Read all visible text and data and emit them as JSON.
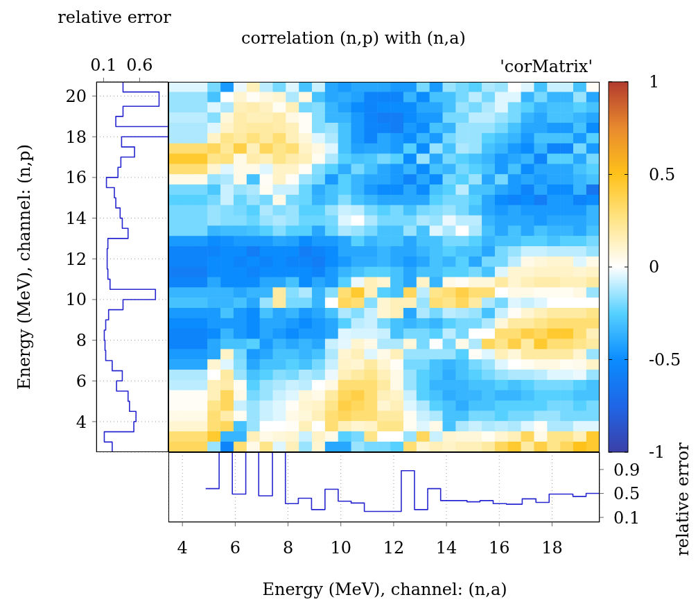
{
  "chart_data": [
    {
      "type": "heatmap",
      "title": "correlation (n,p) with (n,a)",
      "annotations": [
        "'corMatrix'"
      ],
      "categories": [
        null,
        null,
        null,
        null,
        null,
        null,
        null,
        null,
        null,
        null,
        null,
        null,
        null,
        null,
        null,
        null,
        null,
        null,
        null,
        null,
        null,
        null,
        null,
        null,
        null,
        null,
        null,
        null,
        null,
        null,
        null,
        null,
        null
      ],
      "y_categories": [
        null,
        null,
        null,
        null,
        null,
        null,
        null,
        null,
        null,
        null,
        null,
        null,
        null,
        null,
        null,
        null,
        null,
        null,
        null,
        null,
        null,
        null,
        null,
        null,
        null,
        null,
        null,
        null,
        null,
        null,
        null,
        null,
        null,
        null,
        null,
        null
      ],
      "clim": [
        -1,
        1
      ],
      "cticks": [
        -1,
        -0.5,
        0,
        0.5,
        1
      ],
      "cells": [
        [
          -0.05,
          -0.05,
          -0.05,
          -0.2,
          -0.45,
          -0.03,
          0.15,
          -0.1,
          -0.2,
          -0.05,
          -0.3,
          -0.08,
          -0.4,
          -0.45,
          -0.4,
          -0.4,
          -0.4,
          -0.45,
          -0.45,
          -0.2,
          -0.45,
          -0.15,
          -0.2,
          -0.25,
          -0.12,
          -0.15,
          0,
          -0.05,
          -0.3,
          -0.08,
          -0.08,
          -0.3,
          0.02
        ],
        [
          -0.15,
          -0.15,
          -0.15,
          -0.3,
          0,
          0.1,
          0.02,
          0.07,
          0.1,
          -0.12,
          0.06,
          -0.3,
          -0.4,
          -0.38,
          -0.42,
          -0.55,
          -0.55,
          -0.55,
          -0.35,
          -0.5,
          -0.3,
          -0.3,
          -0.2,
          -0.1,
          -0.2,
          -0.05,
          -0.05,
          -0.35,
          -0.2,
          -0.35,
          -0.35,
          -0.15,
          -0.4
        ],
        [
          -0.15,
          -0.15,
          -0.15,
          -0.05,
          -0.12,
          0.15,
          0.17,
          0.13,
          0.03,
          0.15,
          -0.2,
          -0.18,
          -0.35,
          -0.42,
          -0.5,
          -0.55,
          -0.5,
          -0.5,
          -0.5,
          -0.4,
          -0.4,
          -0.3,
          -0.15,
          -0.2,
          -0.12,
          -0.05,
          -0.2,
          -0.25,
          -0.35,
          -0.3,
          -0.3,
          -0.25,
          -0.3
        ],
        [
          -0.1,
          -0.1,
          -0.1,
          -0.18,
          0.08,
          0.18,
          0.15,
          0.15,
          0.18,
          0.06,
          0.02,
          -0.18,
          -0.35,
          -0.35,
          -0.45,
          -0.55,
          -0.6,
          -0.6,
          -0.5,
          -0.45,
          -0.45,
          -0.2,
          -0.2,
          -0.1,
          -0.1,
          -0.15,
          -0.2,
          -0.35,
          -0.4,
          -0.3,
          -0.3,
          -0.35,
          -0.4
        ],
        [
          -0.12,
          -0.12,
          -0.12,
          -0.05,
          0.12,
          0.18,
          0.2,
          0.2,
          0.18,
          0.15,
          0.02,
          -0.18,
          -0.15,
          -0.3,
          -0.45,
          -0.55,
          -0.55,
          -0.6,
          -0.45,
          -0.5,
          -0.3,
          -0.35,
          -0.15,
          -0.15,
          -0.15,
          -0.2,
          -0.3,
          -0.4,
          -0.4,
          -0.45,
          -0.45,
          -0.3,
          -0.5
        ],
        [
          -0.12,
          -0.12,
          -0.12,
          0.12,
          0.25,
          0.2,
          0.28,
          0.2,
          0.3,
          0.15,
          0.08,
          -0.05,
          -0.12,
          -0.3,
          -0.45,
          -0.55,
          -0.4,
          -0.45,
          -0.5,
          -0.35,
          -0.45,
          -0.2,
          -0.15,
          -0.15,
          -0.25,
          -0.3,
          -0.35,
          -0.45,
          -0.3,
          -0.3,
          -0.3,
          -0.45,
          -0.25
        ],
        [
          0.3,
          0.3,
          0.3,
          0.35,
          0.22,
          0.4,
          0.15,
          0.35,
          0.25,
          0.3,
          0.12,
          0.06,
          -0.05,
          -0.3,
          -0.42,
          -0.4,
          -0.4,
          -0.45,
          -0.25,
          -0.5,
          -0.15,
          -0.3,
          -0.12,
          -0.15,
          -0.3,
          -0.35,
          -0.45,
          -0.5,
          -0.35,
          -0.55,
          -0.55,
          -0.2,
          -0.45
        ],
        [
          0.45,
          0.45,
          0.45,
          0.25,
          0.28,
          0.05,
          0.18,
          0.15,
          0.25,
          0.18,
          0.15,
          0.03,
          -0.12,
          -0.25,
          -0.3,
          -0.28,
          -0.2,
          -0.25,
          -0.5,
          -0.15,
          -0.4,
          -0.2,
          -0.25,
          -0.3,
          -0.35,
          -0.45,
          -0.4,
          -0.35,
          -0.55,
          -0.25,
          -0.25,
          -0.4,
          -0.2
        ],
        [
          0.3,
          0.3,
          0.3,
          0.1,
          -0.05,
          0.05,
          0.05,
          -0.05,
          0.12,
          0.12,
          0.02,
          -0.18,
          -0.25,
          -0.38,
          -0.2,
          -0.3,
          -0.4,
          -0.45,
          -0.35,
          -0.5,
          -0.3,
          -0.35,
          -0.2,
          -0.25,
          -0.3,
          -0.45,
          -0.3,
          -0.5,
          -0.4,
          -0.4,
          -0.4,
          -0.3,
          -0.25
        ],
        [
          0.05,
          0.05,
          0.05,
          -0.15,
          -0.12,
          0.05,
          -0.3,
          0.02,
          0.12,
          0.02,
          -0.15,
          -0.2,
          -0.45,
          -0.25,
          -0.35,
          -0.4,
          -0.4,
          -0.45,
          -0.55,
          -0.4,
          -0.5,
          -0.2,
          -0.25,
          -0.15,
          -0.4,
          -0.2,
          -0.45,
          -0.4,
          -0.45,
          -0.4,
          -0.4,
          -0.35,
          -0.3
        ],
        [
          -0.2,
          -0.2,
          -0.2,
          -0.28,
          -0.08,
          -0.15,
          -0.12,
          0.03,
          -0.08,
          -0.08,
          -0.22,
          -0.38,
          -0.3,
          -0.25,
          -0.35,
          -0.45,
          -0.5,
          -0.5,
          -0.4,
          -0.5,
          -0.3,
          -0.25,
          -0.1,
          -0.3,
          -0.3,
          -0.4,
          -0.45,
          -0.55,
          -0.4,
          -0.5,
          -0.5,
          -0.35,
          -0.65
        ],
        [
          -0.25,
          -0.25,
          -0.25,
          -0.2,
          -0.08,
          -0.22,
          -0.15,
          -0.2,
          0.05,
          -0.2,
          -0.22,
          -0.35,
          -0.3,
          -0.18,
          -0.3,
          -0.35,
          -0.4,
          -0.4,
          -0.4,
          -0.4,
          -0.25,
          -0.2,
          -0.2,
          -0.25,
          -0.4,
          -0.5,
          -0.55,
          -0.5,
          -0.6,
          -0.45,
          -0.45,
          -0.55,
          -0.5
        ],
        [
          -0.2,
          -0.2,
          -0.2,
          -0.15,
          -0.18,
          -0.2,
          -0.25,
          -0.12,
          -0.18,
          -0.15,
          -0.25,
          -0.25,
          -0.15,
          -0.08,
          -0.1,
          -0.2,
          -0.25,
          -0.2,
          -0.3,
          -0.2,
          -0.18,
          -0.15,
          -0.2,
          -0.3,
          -0.4,
          -0.45,
          -0.4,
          -0.45,
          -0.45,
          -0.45,
          -0.45,
          -0.45,
          -0.35
        ],
        [
          -0.2,
          -0.2,
          -0.2,
          -0.15,
          -0.18,
          -0.18,
          -0.22,
          -0.15,
          -0.12,
          -0.15,
          -0.22,
          -0.22,
          -0.2,
          -0.05,
          0,
          -0.12,
          -0.2,
          -0.2,
          -0.2,
          -0.12,
          -0.15,
          -0.03,
          -0.1,
          -0.1,
          -0.35,
          -0.4,
          -0.4,
          -0.4,
          -0.45,
          -0.4,
          -0.4,
          -0.4,
          -0.35
        ],
        [
          -0.2,
          -0.2,
          -0.2,
          -0.35,
          -0.32,
          -0.32,
          -0.3,
          -0.25,
          -0.18,
          -0.25,
          -0.25,
          -0.4,
          -0.22,
          -0.12,
          -0.15,
          -0.2,
          -0.3,
          -0.3,
          -0.15,
          -0.3,
          -0.05,
          -0.12,
          0,
          -0.12,
          -0.3,
          -0.4,
          -0.3,
          -0.4,
          -0.3,
          -0.35,
          -0.35,
          -0.4,
          -0.3
        ],
        [
          -0.45,
          -0.45,
          -0.45,
          -0.5,
          -0.48,
          -0.45,
          -0.45,
          -0.45,
          -0.4,
          -0.42,
          -0.5,
          -0.45,
          -0.45,
          -0.4,
          -0.25,
          -0.35,
          -0.3,
          -0.3,
          -0.4,
          -0.3,
          -0.3,
          -0.2,
          -0.2,
          -0.25,
          -0.35,
          -0.3,
          -0.3,
          -0.25,
          -0.25,
          -0.3,
          -0.25,
          -0.25,
          -0.2
        ],
        [
          -0.55,
          -0.55,
          -0.55,
          -0.55,
          -0.5,
          -0.5,
          -0.6,
          -0.5,
          -0.5,
          -0.5,
          -0.6,
          -0.55,
          -0.5,
          -0.4,
          -0.4,
          -0.4,
          -0.35,
          -0.4,
          -0.4,
          -0.35,
          -0.3,
          -0.25,
          -0.3,
          -0.3,
          -0.4,
          -0.2,
          -0.15,
          -0.08,
          -0.08,
          -0.1,
          -0.1,
          -0.1,
          -0.15
        ],
        [
          -0.55,
          -0.55,
          -0.55,
          -0.5,
          -0.5,
          -0.55,
          -0.5,
          -0.55,
          -0.5,
          -0.55,
          -0.55,
          -0.6,
          -0.5,
          -0.45,
          -0.38,
          -0.38,
          -0.35,
          -0.4,
          -0.45,
          -0.4,
          -0.3,
          -0.35,
          -0.25,
          -0.4,
          -0.2,
          -0.2,
          -0.1,
          0.05,
          0.08,
          0.1,
          0.1,
          -0.05,
          0.05
        ],
        [
          -0.6,
          -0.6,
          -0.6,
          -0.5,
          -0.5,
          -0.5,
          -0.55,
          -0.5,
          -0.5,
          -0.5,
          -0.5,
          -0.55,
          -0.45,
          -0.35,
          -0.3,
          -0.25,
          -0.25,
          -0.3,
          -0.4,
          -0.3,
          -0.3,
          -0.25,
          -0.25,
          -0.2,
          -0.3,
          -0.05,
          0.1,
          0.1,
          0.12,
          0.12,
          0.12,
          0.1,
          0.12
        ],
        [
          -0.55,
          -0.55,
          -0.55,
          -0.4,
          -0.5,
          -0.5,
          -0.5,
          -0.4,
          -0.4,
          -0.3,
          -0.5,
          -0.4,
          -0.45,
          -0.25,
          -0.03,
          0.15,
          0.1,
          -0.3,
          -0.4,
          0.12,
          -0.35,
          0.05,
          0.02,
          0.08,
          0.08,
          0.2,
          0.1,
          0.15,
          0.18,
          0.18,
          0.15,
          0.15,
          0.2
        ],
        [
          -0.35,
          -0.35,
          -0.35,
          -0.35,
          -0.35,
          -0.4,
          -0.35,
          -0.35,
          0.2,
          -0.18,
          -0.12,
          -0.35,
          -0.18,
          0.3,
          0.45,
          0.15,
          -0.25,
          -0.3,
          0.35,
          -0.1,
          0.25,
          0.3,
          0.4,
          0.3,
          0.3,
          0,
          0.05,
          0.05,
          0.03,
          0.03,
          0.03,
          0.06,
          -0.15
        ],
        [
          -0.3,
          -0.3,
          -0.3,
          -0.35,
          -0.35,
          -0.3,
          -0.4,
          -0.15,
          0.2,
          -0.2,
          -0.2,
          -0.35,
          0,
          0.35,
          0.3,
          -0.18,
          0.1,
          0.15,
          0.15,
          -0.15,
          0.3,
          0.25,
          0.35,
          0.2,
          -0.12,
          -0.2,
          -0.05,
          -0.08,
          -0.05,
          0,
          0,
          0,
          0
        ],
        [
          -0.45,
          -0.45,
          -0.45,
          -0.45,
          -0.3,
          -0.45,
          -0.5,
          -0.3,
          -0.4,
          -0.35,
          -0.45,
          -0.4,
          -0.3,
          -0.12,
          -0.18,
          -0.08,
          0.1,
          0.15,
          -0.4,
          -0.12,
          -0.2,
          -0.1,
          -0.12,
          -0.15,
          -0.3,
          -0.08,
          0.02,
          0.1,
          0.15,
          0.2,
          0.2,
          0.2,
          0.25
        ],
        [
          -0.5,
          -0.5,
          -0.5,
          -0.45,
          -0.45,
          -0.45,
          -0.5,
          -0.4,
          -0.4,
          -0.45,
          -0.5,
          -0.45,
          -0.4,
          -0.25,
          -0.1,
          -0.08,
          -0.2,
          -0.3,
          -0.35,
          -0.3,
          -0.35,
          -0.25,
          -0.2,
          -0.2,
          -0.12,
          0.08,
          0.2,
          0.2,
          0.25,
          0.3,
          0.3,
          0.3,
          0.3
        ],
        [
          -0.55,
          -0.55,
          -0.55,
          -0.5,
          -0.35,
          -0.45,
          -0.5,
          -0.4,
          -0.45,
          -0.5,
          -0.45,
          -0.45,
          -0.4,
          -0.05,
          -0.06,
          -0.06,
          -0.08,
          -0.3,
          -0.2,
          -0.2,
          -0.25,
          -0.1,
          -0.2,
          0,
          0,
          0.3,
          0.3,
          0.4,
          0.35,
          0.45,
          0.45,
          0.3,
          0.15
        ],
        [
          -0.55,
          -0.55,
          -0.55,
          -0.4,
          -0.3,
          -0.3,
          -0.25,
          -0.45,
          -0.35,
          -0.4,
          -0.35,
          -0.4,
          -0.08,
          -0.04,
          0.1,
          0.05,
          -0.12,
          -0.12,
          0.08,
          -0.2,
          0,
          -0.2,
          0.05,
          -0.12,
          0.35,
          0.25,
          0.4,
          0.2,
          0.45,
          0.3,
          0.3,
          0.25,
          0.2
        ],
        [
          -0.45,
          -0.45,
          -0.45,
          -0.4,
          0.12,
          -0.2,
          -0.45,
          -0.4,
          -0.3,
          -0.3,
          -0.35,
          -0.3,
          -0.12,
          0.1,
          0.15,
          -0.05,
          0.05,
          0.15,
          -0.15,
          -0.15,
          -0.15,
          -0.15,
          -0.25,
          0.02,
          -0.05,
          0.15,
          0.08,
          0.2,
          0.2,
          0.2,
          0.2,
          0.1,
          -0.15
        ],
        [
          -0.4,
          -0.4,
          -0.4,
          0.1,
          -0.05,
          -0.18,
          -0.4,
          -0.3,
          -0.3,
          -0.25,
          -0.3,
          -0.2,
          -0.08,
          0.12,
          0.1,
          0.2,
          0.1,
          0.02,
          -0.2,
          -0.2,
          -0.3,
          -0.35,
          -0.3,
          -0.2,
          -0.15,
          -0.05,
          0,
          0.03,
          0.06,
          0.06,
          0.03,
          0.04,
          0.12
        ],
        [
          -0.12,
          -0.12,
          -0.12,
          0,
          0.2,
          -0.15,
          -0.3,
          -0.25,
          -0.18,
          -0.2,
          -0.12,
          -0.15,
          -0.03,
          0.15,
          0.2,
          0.25,
          0.15,
          0.05,
          -0.15,
          -0.25,
          -0.3,
          -0.38,
          -0.3,
          -0.25,
          -0.2,
          -0.15,
          -0.12,
          -0.12,
          -0.1,
          -0.05,
          -0.05,
          -0.03,
          -0.15
        ],
        [
          -0.1,
          -0.1,
          -0.1,
          0.15,
          0.18,
          0.03,
          -0.25,
          -0.15,
          -0.12,
          -0.08,
          -0.1,
          0,
          0.06,
          0.3,
          0.3,
          0.3,
          0.2,
          0.05,
          -0.15,
          -0.25,
          -0.35,
          -0.35,
          -0.35,
          -0.3,
          -0.3,
          -0.25,
          -0.3,
          -0.25,
          -0.2,
          -0.2,
          -0.2,
          -0.25,
          -0.3
        ],
        [
          0.02,
          0.02,
          0.02,
          0.15,
          0.35,
          0.05,
          -0.2,
          -0.15,
          -0.08,
          -0.05,
          0.08,
          0.05,
          0.2,
          0.35,
          0.4,
          0.3,
          0.15,
          0.12,
          -0.08,
          -0.25,
          -0.3,
          -0.38,
          -0.35,
          -0.35,
          -0.3,
          -0.35,
          -0.35,
          -0.3,
          -0.25,
          -0.25,
          -0.25,
          -0.3,
          -0.3
        ],
        [
          0.02,
          0.02,
          0.02,
          0.25,
          0.35,
          -0.08,
          -0.15,
          -0.08,
          -0.05,
          0.02,
          0.1,
          0.12,
          0.25,
          0.4,
          0.35,
          0.3,
          0.1,
          0.15,
          -0.05,
          -0.12,
          -0.25,
          -0.3,
          -0.38,
          -0.3,
          -0.3,
          -0.25,
          -0.25,
          -0.25,
          -0.25,
          -0.2,
          -0.2,
          -0.25,
          -0.2
        ],
        [
          0.05,
          0.05,
          0.05,
          0.3,
          0.18,
          0.03,
          -0.15,
          -0.08,
          -0.05,
          0.05,
          0.08,
          0.15,
          0.3,
          0.35,
          0.3,
          0.3,
          0.2,
          0.2,
          0.03,
          -0.08,
          -0.12,
          -0.3,
          -0.3,
          -0.2,
          -0.2,
          -0.25,
          -0.2,
          -0.2,
          -0.15,
          -0.15,
          -0.2,
          -0.2,
          -0.2
        ],
        [
          0.1,
          0.1,
          0.1,
          0.3,
          0.35,
          -0.3,
          -0.15,
          0,
          0,
          0.02,
          0.15,
          0,
          0.3,
          0.15,
          0.1,
          0.12,
          0.25,
          0.25,
          0.03,
          -0.05,
          0.05,
          -0.3,
          -0.12,
          -0.08,
          -0.12,
          -0.1,
          -0.12,
          -0.05,
          0.02,
          -0.12,
          -0.12,
          -0.05,
          -0.05
        ],
        [
          0.3,
          0.3,
          0.3,
          0.45,
          -0.35,
          -0.35,
          0.15,
          0.05,
          0.08,
          0.1,
          -0.08,
          0.12,
          0.05,
          -0.25,
          -0.2,
          0.25,
          0,
          0,
          -0.15,
          0.35,
          -0.08,
          0.1,
          0.08,
          0.08,
          0.03,
          0.1,
          0.15,
          0.35,
          0.05,
          0.25,
          0.25,
          0.15,
          0.45
        ],
        [
          0.35,
          0.35,
          0.35,
          -0.15,
          -0.55,
          0.3,
          0.05,
          0.25,
          -0.05,
          0.15,
          -0.15,
          0.1,
          -0.4,
          -0.4,
          -0.15,
          -0.2,
          -0.2,
          -0.25,
          0.3,
          0.1,
          0.15,
          0.12,
          0.15,
          0.15,
          0.2,
          0.35,
          0.45,
          0.2,
          0.4,
          0.25,
          0.35,
          0.5,
          0.45
        ]
      ]
    },
    {
      "type": "step",
      "orientation": "horizontal",
      "ylabel": "Energy (MeV), channel: (n,p)",
      "x2label": "relative error",
      "x": [
        2.5,
        3,
        3.5,
        4,
        4.5,
        5,
        5.5,
        6,
        6.5,
        7,
        7.5,
        8,
        8.5,
        9,
        9.5,
        10,
        10.5,
        11,
        11.5,
        12,
        12.5,
        13,
        13.5,
        14,
        14.5,
        15,
        15.5,
        16,
        16.5,
        17,
        17.5,
        18,
        18.5,
        19,
        19.5,
        20.2,
        20.7
      ],
      "series": [
        {
          "color": "#2626d0",
          "axis": "x2",
          "values": [
            0.22,
            0.11,
            0.52,
            0.55,
            0.46,
            0.44,
            0.28,
            0.36,
            0.22,
            0.13,
            0.12,
            0.11,
            0.13,
            0.17,
            0.37,
            0.82,
            0.19,
            0.16,
            0.15,
            0.15,
            0.16,
            0.44,
            0.36,
            0.33,
            0.27,
            0.25,
            0.14,
            0.3,
            0.34,
            0.53,
            0.35,
            1,
            0.27,
            0.37,
            0.87,
            0.37,
            0.37
          ]
        }
      ],
      "x2lim": [
        0,
        1
      ],
      "x2ticks": [
        0.1,
        0.6
      ],
      "ylim": [
        2.5,
        20.7
      ],
      "yticks": [
        4,
        6,
        8,
        10,
        12,
        14,
        16,
        18,
        20
      ],
      "grid": "y"
    },
    {
      "type": "step",
      "xlabel": "Energy (MeV), channel: (n,a)",
      "y2label": "relative error",
      "x": [
        4.88,
        5.39,
        5.89,
        6.4,
        6.89,
        7.41,
        7.9,
        8.39,
        8.89,
        9.4,
        9.9,
        10.39,
        10.89,
        11.6,
        12.29,
        12.79,
        13.29,
        13.78,
        14.29,
        14.78,
        15.27,
        15.77,
        16.27,
        16.87,
        17.39,
        17.89,
        18.79,
        19.29,
        19.8
      ],
      "series": [
        {
          "color": "#2626d0",
          "axis": "y2",
          "values": [
            0.58,
            1.19,
            0.49,
            1.19,
            0.46,
            1.19,
            0.33,
            0.42,
            0.23,
            0.57,
            0.37,
            0.34,
            0.2,
            0.2,
            0.88,
            0.23,
            0.58,
            0.38,
            0.38,
            0.36,
            0.38,
            0.33,
            0.32,
            0.41,
            0.35,
            0.49,
            0.45,
            0.5,
            0.5
          ]
        }
      ],
      "xlim": [
        3.47,
        19.8
      ],
      "xticks": [
        4,
        6,
        8,
        10,
        12,
        14,
        16,
        18
      ],
      "y2lim": [
        0.02,
        1.19
      ],
      "y2ticks": [
        0.1,
        0.5,
        0.9
      ],
      "grid": "x"
    }
  ]
}
